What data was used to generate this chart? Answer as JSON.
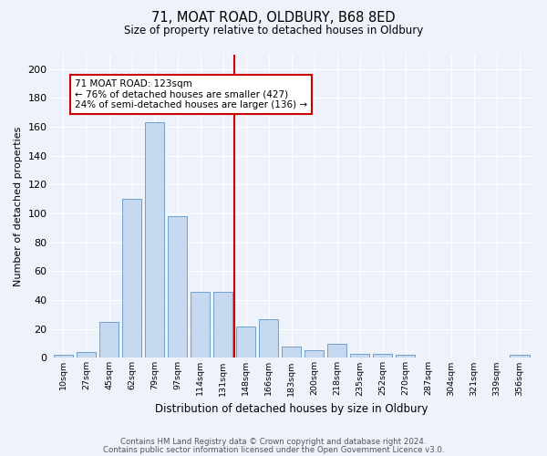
{
  "title1": "71, MOAT ROAD, OLDBURY, B68 8ED",
  "title2": "Size of property relative to detached houses in Oldbury",
  "xlabel": "Distribution of detached houses by size in Oldbury",
  "ylabel": "Number of detached properties",
  "bar_labels": [
    "10sqm",
    "27sqm",
    "45sqm",
    "62sqm",
    "79sqm",
    "97sqm",
    "114sqm",
    "131sqm",
    "148sqm",
    "166sqm",
    "183sqm",
    "200sqm",
    "218sqm",
    "235sqm",
    "252sqm",
    "270sqm",
    "287sqm",
    "304sqm",
    "321sqm",
    "339sqm",
    "356sqm"
  ],
  "bar_values": [
    2,
    4,
    25,
    110,
    163,
    98,
    46,
    46,
    22,
    27,
    8,
    5,
    10,
    3,
    3,
    2,
    0,
    0,
    0,
    0,
    2
  ],
  "bar_color": "#c5d8f0",
  "bar_edge_color": "#6fa0cc",
  "bar_edge_width": 0.7,
  "vline_x": 7.5,
  "vline_color": "#cc0000",
  "annotation_text": "71 MOAT ROAD: 123sqm\n← 76% of detached houses are smaller (427)\n24% of semi-detached houses are larger (136) →",
  "annotation_box_color": "#ffffff",
  "annotation_box_edge_color": "#cc0000",
  "ylim": [
    0,
    210
  ],
  "yticks": [
    0,
    20,
    40,
    60,
    80,
    100,
    120,
    140,
    160,
    180,
    200
  ],
  "footer1": "Contains HM Land Registry data © Crown copyright and database right 2024.",
  "footer2": "Contains public sector information licensed under the Open Government Licence v3.0.",
  "bg_color": "#edf2fb",
  "grid_color": "#ffffff"
}
